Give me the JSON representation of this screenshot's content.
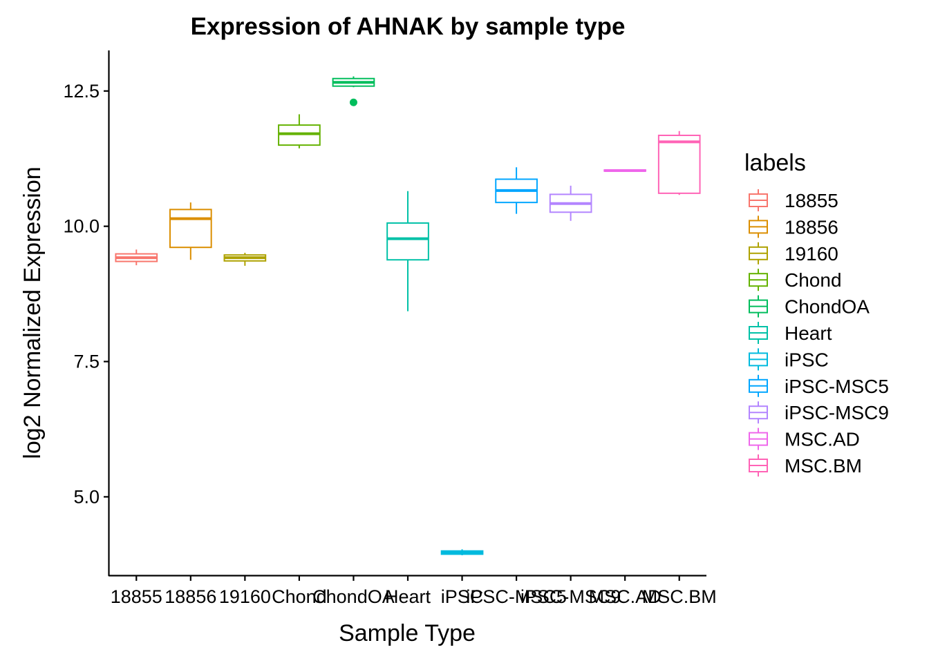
{
  "chart_data": {
    "type": "boxplot",
    "title": "Expression of AHNAK by sample type",
    "xlabel": "Sample Type",
    "ylabel": "log2 Normalized Expression",
    "ylim": [
      3.55,
      13.25
    ],
    "yticks": [
      5.0,
      7.5,
      10.0,
      12.5
    ],
    "ytick_labels": [
      "5.0",
      "7.5",
      "10.0",
      "12.5"
    ],
    "grid": false,
    "legend_title": "labels",
    "legend_position": "right",
    "categories": [
      "18855",
      "18856",
      "19160",
      "Chond",
      "ChondOA",
      "Heart",
      "iPSC",
      "iPSC-MSC5",
      "iPSC-MSC9",
      "MSC.AD",
      "MSC.BM"
    ],
    "colors": [
      "#F8766D",
      "#DB8E00",
      "#AEA200",
      "#64B200",
      "#00BD5C",
      "#00C1A7",
      "#00BADE",
      "#00A6FF",
      "#B385FF",
      "#EF67EB",
      "#FF63B6"
    ],
    "boxes": [
      {
        "label": "18855",
        "min": 9.28,
        "q1": 9.35,
        "median": 9.42,
        "q3": 9.49,
        "max": 9.57,
        "outliers": []
      },
      {
        "label": "18856",
        "min": 9.38,
        "q1": 9.61,
        "median": 10.14,
        "q3": 10.31,
        "max": 10.44,
        "outliers": []
      },
      {
        "label": "19160",
        "min": 9.27,
        "q1": 9.36,
        "median": 9.42,
        "q3": 9.47,
        "max": 9.51,
        "outliers": []
      },
      {
        "label": "Chond",
        "min": 11.44,
        "q1": 11.5,
        "median": 11.71,
        "q3": 11.87,
        "max": 12.07,
        "outliers": []
      },
      {
        "label": "ChondOA",
        "min": 12.57,
        "q1": 12.59,
        "median": 12.66,
        "q3": 12.73,
        "max": 12.77,
        "outliers": [
          12.29
        ]
      },
      {
        "label": "Heart",
        "min": 8.43,
        "q1": 9.38,
        "median": 9.77,
        "q3": 10.06,
        "max": 10.65,
        "outliers": []
      },
      {
        "label": "iPSC",
        "min": 3.92,
        "q1": 3.94,
        "median": 3.97,
        "q3": 4.0,
        "max": 4.03,
        "outliers": []
      },
      {
        "label": "iPSC-MSC5",
        "min": 10.23,
        "q1": 10.44,
        "median": 10.66,
        "q3": 10.87,
        "max": 11.09,
        "outliers": []
      },
      {
        "label": "iPSC-MSC9",
        "min": 10.1,
        "q1": 10.26,
        "median": 10.42,
        "q3": 10.59,
        "max": 10.75,
        "outliers": []
      },
      {
        "label": "MSC.AD",
        "min": 11.01,
        "q1": 11.02,
        "median": 11.03,
        "q3": 11.04,
        "max": 11.05,
        "outliers": []
      },
      {
        "label": "MSC.BM",
        "min": 10.58,
        "q1": 10.61,
        "median": 11.56,
        "q3": 11.68,
        "max": 11.76,
        "outliers": []
      }
    ]
  }
}
